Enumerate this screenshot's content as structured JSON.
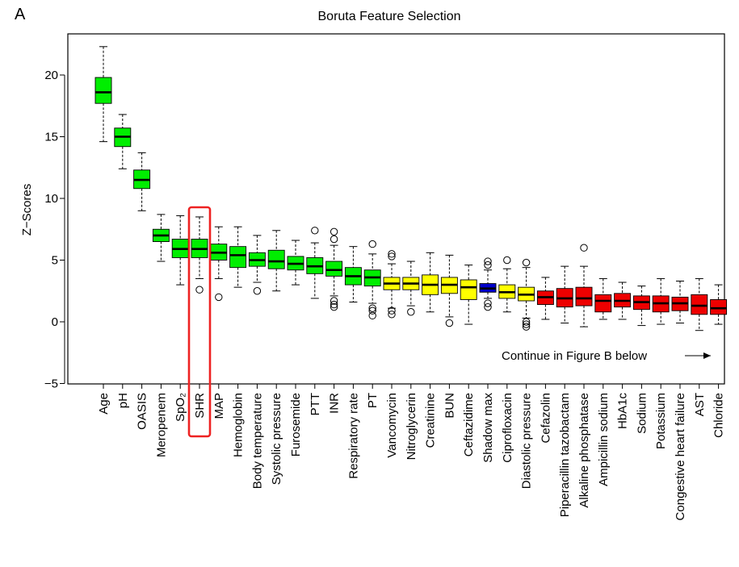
{
  "panel_label": "A",
  "chart_data": {
    "type": "boxplot",
    "title": "Boruta Feature Selection",
    "ylabel": "Z−Scores",
    "xlabel": "",
    "ylim": [
      -5,
      24
    ],
    "yticks": [
      -5,
      0,
      5,
      10,
      15,
      20
    ],
    "ytick_labels": [
      "−5",
      "0",
      "5",
      "10",
      "15",
      "20"
    ],
    "grid": false,
    "annotation": "Continue in Figure B below",
    "highlight": "SHR",
    "colors": {
      "green": "#00ee00",
      "yellow": "#ffff00",
      "blue": "#0000cc",
      "red": "#ee0000",
      "highlight_frame": "#ee2222"
    },
    "categories": [
      "Age",
      "pH",
      "OASIS",
      "Meropenem",
      "SpO₂",
      "SHR",
      "MAP",
      "Hemoglobin",
      "Body temperature",
      "Systolic pressure",
      "Furosemide",
      "PTT",
      "INR",
      "Respiratory rate",
      "PT",
      "Vancomycin",
      "Nitroglycerin",
      "Creatinine",
      "BUN",
      "Ceftazidime",
      "Shadow max",
      "Ciprofloxacin",
      "Diastolic pressure",
      "Cefazolin",
      "Piperacillin tazobactam",
      "Alkaline phosphatase",
      "Ampicillin sodium",
      "HbA1c",
      "Sodium",
      "Potassium",
      "Congestive heart failure",
      "AST",
      "Chloride"
    ],
    "status": [
      "green",
      "green",
      "green",
      "green",
      "green",
      "green",
      "green",
      "green",
      "green",
      "green",
      "green",
      "green",
      "green",
      "green",
      "green",
      "yellow",
      "yellow",
      "yellow",
      "yellow",
      "yellow",
      "blue",
      "yellow",
      "yellow",
      "red",
      "red",
      "red",
      "red",
      "red",
      "red",
      "red",
      "red",
      "red",
      "red"
    ],
    "boxes": [
      {
        "min": 14.6,
        "q1": 17.7,
        "median": 18.6,
        "q3": 19.8,
        "max": 22.3,
        "outliers": []
      },
      {
        "min": 12.4,
        "q1": 14.2,
        "median": 15.0,
        "q3": 15.7,
        "max": 16.8,
        "outliers": []
      },
      {
        "min": 9.0,
        "q1": 10.8,
        "median": 11.5,
        "q3": 12.3,
        "max": 13.7,
        "outliers": []
      },
      {
        "min": 4.9,
        "q1": 6.5,
        "median": 7.0,
        "q3": 7.5,
        "max": 8.7,
        "outliers": []
      },
      {
        "min": 3.0,
        "q1": 5.2,
        "median": 5.9,
        "q3": 6.7,
        "max": 8.6,
        "outliers": []
      },
      {
        "min": 3.5,
        "q1": 5.2,
        "median": 5.9,
        "q3": 6.7,
        "max": 8.5,
        "outliers": [
          2.6
        ]
      },
      {
        "min": 3.5,
        "q1": 5.0,
        "median": 5.6,
        "q3": 6.3,
        "max": 7.7,
        "outliers": [
          2.0
        ]
      },
      {
        "min": 2.8,
        "q1": 4.4,
        "median": 5.4,
        "q3": 6.1,
        "max": 7.7,
        "outliers": []
      },
      {
        "min": 3.2,
        "q1": 4.5,
        "median": 5.0,
        "q3": 5.6,
        "max": 7.0,
        "outliers": [
          2.5
        ]
      },
      {
        "min": 2.5,
        "q1": 4.3,
        "median": 4.9,
        "q3": 5.8,
        "max": 7.4,
        "outliers": []
      },
      {
        "min": 3.0,
        "q1": 4.2,
        "median": 4.7,
        "q3": 5.3,
        "max": 6.6,
        "outliers": []
      },
      {
        "min": 1.9,
        "q1": 3.9,
        "median": 4.5,
        "q3": 5.2,
        "max": 6.4,
        "outliers": [
          7.4
        ]
      },
      {
        "min": 2.1,
        "q1": 3.7,
        "median": 4.2,
        "q3": 4.9,
        "max": 6.2,
        "outliers": [
          7.3,
          6.7,
          1.7,
          1.4,
          1.2
        ]
      },
      {
        "min": 1.6,
        "q1": 3.0,
        "median": 3.7,
        "q3": 4.4,
        "max": 6.1,
        "outliers": []
      },
      {
        "min": 1.5,
        "q1": 2.9,
        "median": 3.6,
        "q3": 4.2,
        "max": 5.5,
        "outliers": [
          6.3,
          1.1,
          0.9,
          0.5
        ]
      },
      {
        "min": 1.1,
        "q1": 2.6,
        "median": 3.1,
        "q3": 3.6,
        "max": 4.7,
        "outliers": [
          5.5,
          5.3,
          0.9,
          0.6
        ]
      },
      {
        "min": 1.3,
        "q1": 2.6,
        "median": 3.1,
        "q3": 3.6,
        "max": 4.9,
        "outliers": [
          0.8
        ]
      },
      {
        "min": 0.8,
        "q1": 2.2,
        "median": 3.0,
        "q3": 3.8,
        "max": 5.6,
        "outliers": []
      },
      {
        "min": 0.4,
        "q1": 2.3,
        "median": 3.0,
        "q3": 3.6,
        "max": 5.4,
        "outliers": [
          -0.1
        ]
      },
      {
        "min": -0.2,
        "q1": 1.8,
        "median": 2.8,
        "q3": 3.4,
        "max": 4.6,
        "outliers": []
      },
      {
        "min": 1.9,
        "q1": 2.4,
        "median": 2.7,
        "q3": 3.1,
        "max": 4.2,
        "outliers": [
          4.9,
          4.6,
          1.5,
          1.2
        ]
      },
      {
        "min": 0.8,
        "q1": 1.9,
        "median": 2.4,
        "q3": 3.0,
        "max": 4.3,
        "outliers": [
          5.0
        ]
      },
      {
        "min": 0.3,
        "q1": 1.7,
        "median": 2.2,
        "q3": 2.8,
        "max": 4.4,
        "outliers": [
          4.8,
          0.0,
          -0.2,
          -0.4
        ]
      },
      {
        "min": 0.2,
        "q1": 1.4,
        "median": 2.0,
        "q3": 2.5,
        "max": 3.6,
        "outliers": []
      },
      {
        "min": -0.1,
        "q1": 1.2,
        "median": 1.9,
        "q3": 2.7,
        "max": 4.5,
        "outliers": []
      },
      {
        "min": -0.4,
        "q1": 1.3,
        "median": 1.9,
        "q3": 2.8,
        "max": 4.5,
        "outliers": [
          6.0
        ]
      },
      {
        "min": 0.2,
        "q1": 0.8,
        "median": 1.7,
        "q3": 2.2,
        "max": 3.5,
        "outliers": []
      },
      {
        "min": 0.2,
        "q1": 1.2,
        "median": 1.7,
        "q3": 2.3,
        "max": 3.2,
        "outliers": []
      },
      {
        "min": -0.3,
        "q1": 1.0,
        "median": 1.6,
        "q3": 2.1,
        "max": 2.9,
        "outliers": []
      },
      {
        "min": -0.2,
        "q1": 0.8,
        "median": 1.5,
        "q3": 2.1,
        "max": 3.5,
        "outliers": []
      },
      {
        "min": -0.1,
        "q1": 0.9,
        "median": 1.5,
        "q3": 2.0,
        "max": 3.3,
        "outliers": []
      },
      {
        "min": -0.7,
        "q1": 0.6,
        "median": 1.3,
        "q3": 2.2,
        "max": 3.5,
        "outliers": []
      },
      {
        "min": -0.2,
        "q1": 0.6,
        "median": 1.1,
        "q3": 1.8,
        "max": 3.0,
        "outliers": []
      }
    ]
  }
}
